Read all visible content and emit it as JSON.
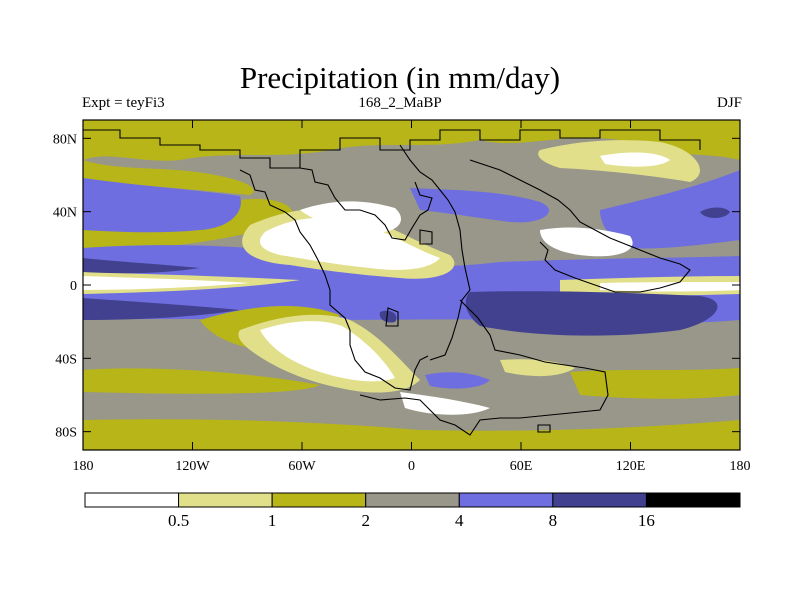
{
  "chart_data": {
    "type": "heatmap",
    "title": "Precipitation (in mm/day)",
    "subtitle_left": "Expt = teyFi3",
    "subtitle_center": "168_2_MaBP",
    "subtitle_right": "DJF",
    "x_ticks": [
      {
        "value": -180,
        "label": "180"
      },
      {
        "value": -120,
        "label": "120W"
      },
      {
        "value": -60,
        "label": "60W"
      },
      {
        "value": 0,
        "label": "0"
      },
      {
        "value": 60,
        "label": "60E"
      },
      {
        "value": 120,
        "label": "120E"
      },
      {
        "value": 180,
        "label": "180"
      }
    ],
    "y_ticks": [
      {
        "value": 80,
        "label": "80N"
      },
      {
        "value": 40,
        "label": "40N"
      },
      {
        "value": 0,
        "label": "0"
      },
      {
        "value": -40,
        "label": "40S"
      },
      {
        "value": -80,
        "label": "80S"
      }
    ],
    "xlim": [
      -180,
      180
    ],
    "ylim": [
      -90,
      90
    ],
    "levels": [
      0.5,
      1,
      2,
      4,
      8,
      16
    ],
    "level_labels": [
      "0.5",
      "1",
      "2",
      "4",
      "8",
      "16"
    ],
    "colors": [
      "#ffffff",
      "#e2df8a",
      "#b8b518",
      "#98978a",
      "#6e6ee0",
      "#414190",
      "#000000"
    ]
  }
}
